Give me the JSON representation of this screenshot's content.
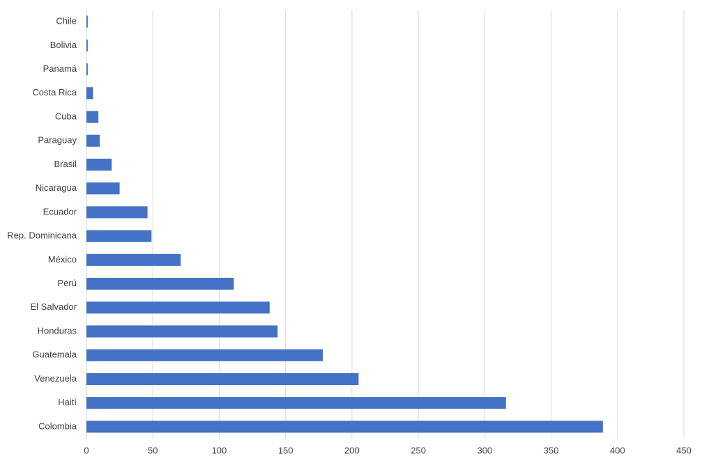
{
  "chart_data": {
    "type": "hbar",
    "categories": [
      "Chile",
      "Bolivia",
      "Panamá",
      "Costa Rica",
      "Cuba",
      "Paraguay",
      "Brasil",
      "Nicaragua",
      "Ecuador",
      "Rep. Dominicana",
      "México",
      "Perú",
      "El Salvador",
      "Honduras",
      "Guatemala",
      "Venezuela",
      "Haití",
      "Colombia"
    ],
    "values": [
      1,
      1,
      1,
      5,
      9,
      10,
      19,
      25,
      46,
      49,
      71,
      111,
      138,
      144,
      178,
      205,
      316,
      389
    ],
    "color": "#4472c4",
    "xlim": [
      0,
      450
    ],
    "xticks": [
      0,
      50,
      100,
      150,
      200,
      250,
      300,
      350,
      400,
      450
    ],
    "grid": true
  }
}
